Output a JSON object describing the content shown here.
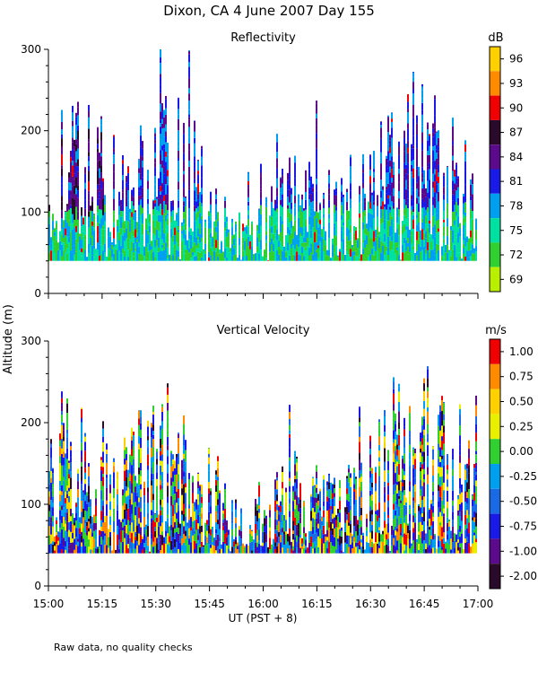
{
  "title": "Dixon, CA   4 June 2007   Day 155",
  "footnote": "Raw data, no quality checks",
  "chart_data": [
    {
      "type": "heatmap",
      "title": "Reflectivity",
      "ylabel": "Altitude (m)",
      "xlabel": "UT  (PST + 8)",
      "ylim": [
        0,
        300
      ],
      "xlim_minutes": [
        0,
        120
      ],
      "y_ticks": [
        "0",
        "100",
        "200",
        "300"
      ],
      "x_ticks": [
        "15:00",
        "15:15",
        "15:30",
        "15:45",
        "16:00",
        "16:15",
        "16:30",
        "16:45",
        "17:00"
      ],
      "data_floor_m": 40,
      "colorbar": {
        "unit": "dB",
        "labels": [
          "96",
          "93",
          "90",
          "87",
          "84",
          "81",
          "78",
          "75",
          "72",
          "69"
        ],
        "colors": [
          "#ffd000",
          "#ff8a00",
          "#f00000",
          "#2a0a2a",
          "#5a0a8a",
          "#1a1ae6",
          "#00a0f0",
          "#00e0a0",
          "#30d030",
          "#b8f000"
        ]
      }
    },
    {
      "type": "heatmap",
      "title": "Vertical Velocity",
      "ylabel": "Altitude (m)",
      "xlabel": "UT  (PST + 8)",
      "ylim": [
        0,
        300
      ],
      "xlim_minutes": [
        0,
        120
      ],
      "y_ticks": [
        "0",
        "100",
        "200",
        "300"
      ],
      "x_ticks": [
        "15:00",
        "15:15",
        "15:30",
        "15:45",
        "16:00",
        "16:15",
        "16:30",
        "16:45",
        "17:00"
      ],
      "data_floor_m": 40,
      "colorbar": {
        "unit": "m/s",
        "labels": [
          "1.00",
          "0.75",
          "0.50",
          "0.25",
          "0.00",
          "-0.25",
          "-0.50",
          "-0.75",
          "-1.00",
          "-2.00"
        ],
        "colors": [
          "#f00000",
          "#ff8a00",
          "#ffd000",
          "#e8f000",
          "#30d030",
          "#00a0f0",
          "#1a6ae6",
          "#1a1ae6",
          "#5a0a8a",
          "#2a0a2a"
        ]
      }
    }
  ]
}
